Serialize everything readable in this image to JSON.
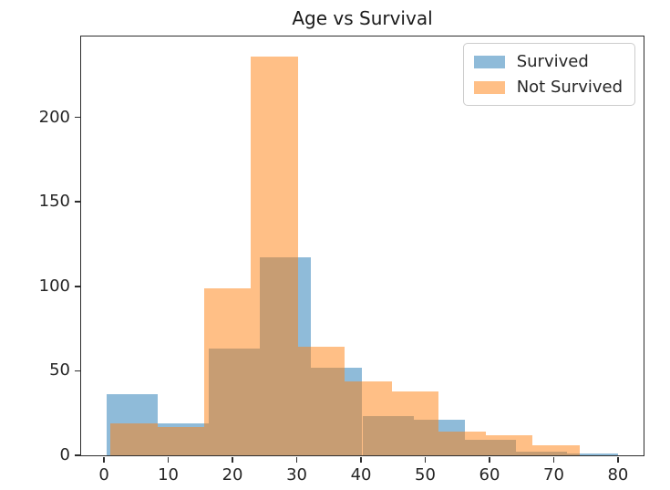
{
  "title": "Age vs Survival",
  "chart_data": {
    "type": "histogram",
    "title": "Age vs Survival",
    "xlabel": "",
    "ylabel": "",
    "alpha": 0.5,
    "grid": false,
    "legend_position": "upper right",
    "xlim": [
      -3.56,
      83.98
    ],
    "ylim": [
      0,
      247.8
    ],
    "x_ticks": [
      0,
      10,
      20,
      30,
      40,
      50,
      60,
      70,
      80
    ],
    "y_ticks": [
      0,
      50,
      100,
      150,
      200
    ],
    "series": [
      {
        "name": "Survived",
        "color": "#1f77b4",
        "bin_edges": [
          0.42,
          8.38,
          16.34,
          24.29,
          32.25,
          40.21,
          48.17,
          56.13,
          64.08,
          72.04,
          80.0
        ],
        "counts": [
          36,
          19,
          63,
          117,
          52,
          23,
          21,
          9,
          2,
          1
        ]
      },
      {
        "name": "Not Survived",
        "color": "#ff7f0e",
        "bin_edges": [
          1.0,
          8.3,
          15.6,
          22.9,
          30.2,
          37.5,
          44.8,
          52.1,
          59.4,
          66.7,
          74.0
        ],
        "counts": [
          19,
          17,
          99,
          236,
          64,
          44,
          38,
          14,
          12,
          6
        ]
      }
    ],
    "colors": {
      "survived_fill": "#8fbbd9",
      "not_survived_fill": "#ffbf86",
      "overlap_fill": "#c79d74",
      "spine": "#2d2d2d",
      "text": "#262626"
    }
  }
}
